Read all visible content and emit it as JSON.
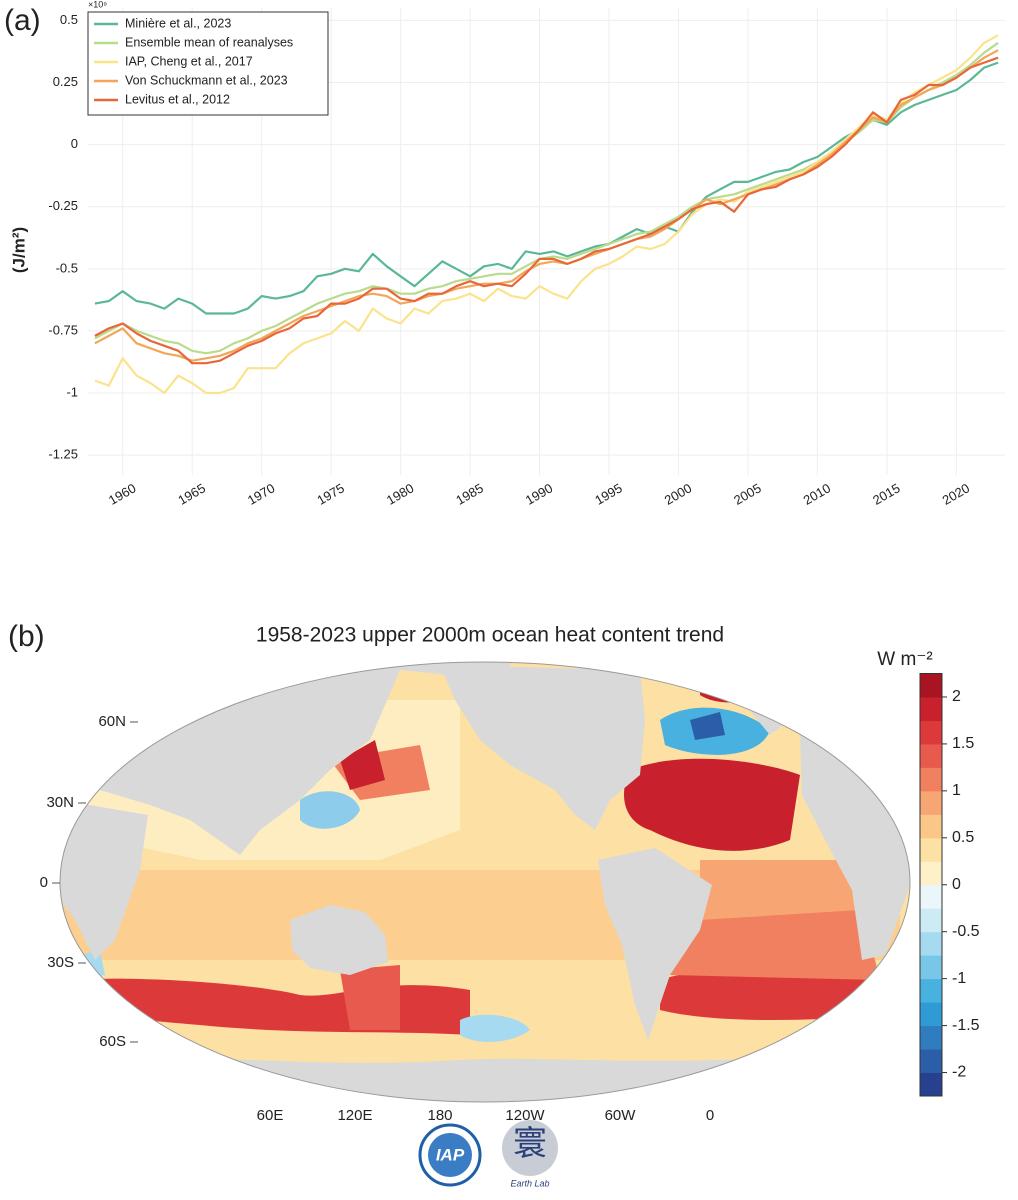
{
  "chart_data": [
    {
      "type": "line",
      "panel": "(a)",
      "ylabel": "(J/m²)",
      "multiplier": "×10⁹",
      "x": [
        1958,
        1959,
        1960,
        1961,
        1962,
        1963,
        1964,
        1965,
        1966,
        1967,
        1968,
        1969,
        1970,
        1971,
        1972,
        1973,
        1974,
        1975,
        1976,
        1977,
        1978,
        1979,
        1980,
        1981,
        1982,
        1983,
        1984,
        1985,
        1986,
        1987,
        1988,
        1989,
        1990,
        1991,
        1992,
        1993,
        1994,
        1995,
        1996,
        1997,
        1998,
        1999,
        2000,
        2001,
        2002,
        2003,
        2004,
        2005,
        2006,
        2007,
        2008,
        2009,
        2010,
        2011,
        2012,
        2013,
        2014,
        2015,
        2016,
        2017,
        2018,
        2019,
        2020,
        2021,
        2022,
        2023
      ],
      "xlim": [
        1957.5,
        2023.5
      ],
      "xticks": [
        1960,
        1965,
        1970,
        1975,
        1980,
        1985,
        1990,
        1995,
        2000,
        2005,
        2010,
        2015,
        2020
      ],
      "ylim": [
        -1.33,
        0.55
      ],
      "yticks": [
        -1.25,
        -1,
        -0.75,
        -0.5,
        -0.25,
        0,
        0.25,
        0.5
      ],
      "grid": true,
      "legend": "upper left",
      "series": [
        {
          "name": "Minière et al., 2023",
          "color": "#5ab896",
          "values": [
            -0.64,
            -0.63,
            -0.59,
            -0.63,
            -0.64,
            -0.66,
            -0.62,
            -0.64,
            -0.68,
            -0.68,
            -0.68,
            -0.66,
            -0.61,
            -0.62,
            -0.61,
            -0.59,
            -0.53,
            -0.52,
            -0.5,
            -0.51,
            -0.44,
            -0.49,
            -0.53,
            -0.57,
            -0.52,
            -0.47,
            -0.5,
            -0.53,
            -0.49,
            -0.48,
            -0.5,
            -0.43,
            -0.44,
            -0.43,
            -0.45,
            -0.43,
            -0.41,
            -0.4,
            -0.37,
            -0.34,
            -0.36,
            -0.33,
            -0.35,
            -0.27,
            -0.21,
            -0.18,
            -0.15,
            -0.15,
            -0.13,
            -0.11,
            -0.1,
            -0.07,
            -0.05,
            -0.01,
            0.03,
            0.06,
            0.1,
            0.08,
            0.13,
            0.16,
            0.18,
            0.2,
            0.22,
            0.26,
            0.31,
            0.33
          ]
        },
        {
          "name": "Ensemble mean of reanalyses",
          "color": "#b8dc8c",
          "values": [
            -0.78,
            -0.75,
            -0.72,
            -0.75,
            -0.77,
            -0.79,
            -0.8,
            -0.83,
            -0.84,
            -0.83,
            -0.8,
            -0.78,
            -0.75,
            -0.73,
            -0.7,
            -0.67,
            -0.64,
            -0.62,
            -0.6,
            -0.59,
            -0.57,
            -0.58,
            -0.6,
            -0.6,
            -0.58,
            -0.57,
            -0.55,
            -0.54,
            -0.53,
            -0.52,
            -0.52,
            -0.49,
            -0.46,
            -0.45,
            -0.46,
            -0.44,
            -0.42,
            -0.4,
            -0.38,
            -0.36,
            -0.35,
            -0.32,
            -0.29,
            -0.25,
            -0.22,
            -0.21,
            -0.2,
            -0.18,
            -0.16,
            -0.14,
            -0.12,
            -0.1,
            -0.07,
            -0.03,
            0.01,
            0.05,
            0.1,
            0.09,
            0.15,
            0.19,
            0.22,
            0.25,
            0.28,
            0.32,
            0.37,
            0.41
          ]
        },
        {
          "name": "IAP, Cheng et al., 2017",
          "color": "#fbe38c",
          "values": [
            -0.95,
            -0.97,
            -0.86,
            -0.93,
            -0.96,
            -1.0,
            -0.93,
            -0.96,
            -1.0,
            -1.0,
            -0.98,
            -0.9,
            -0.9,
            -0.9,
            -0.84,
            -0.8,
            -0.78,
            -0.76,
            -0.71,
            -0.75,
            -0.66,
            -0.7,
            -0.72,
            -0.66,
            -0.68,
            -0.63,
            -0.62,
            -0.6,
            -0.63,
            -0.58,
            -0.61,
            -0.62,
            -0.57,
            -0.6,
            -0.62,
            -0.55,
            -0.5,
            -0.48,
            -0.45,
            -0.41,
            -0.42,
            -0.4,
            -0.35,
            -0.28,
            -0.24,
            -0.22,
            -0.23,
            -0.19,
            -0.17,
            -0.15,
            -0.13,
            -0.11,
            -0.07,
            -0.03,
            0.02,
            0.07,
            0.12,
            0.1,
            0.17,
            0.21,
            0.24,
            0.27,
            0.3,
            0.35,
            0.41,
            0.44
          ]
        },
        {
          "name": "Von Schuckmann et al., 2023",
          "color": "#f2a65a",
          "values": [
            -0.8,
            -0.77,
            -0.74,
            -0.8,
            -0.82,
            -0.84,
            -0.85,
            -0.87,
            -0.86,
            -0.85,
            -0.83,
            -0.8,
            -0.78,
            -0.75,
            -0.72,
            -0.69,
            -0.67,
            -0.65,
            -0.63,
            -0.61,
            -0.6,
            -0.61,
            -0.64,
            -0.63,
            -0.61,
            -0.6,
            -0.58,
            -0.57,
            -0.56,
            -0.56,
            -0.55,
            -0.51,
            -0.48,
            -0.47,
            -0.48,
            -0.46,
            -0.44,
            -0.42,
            -0.4,
            -0.38,
            -0.37,
            -0.34,
            -0.3,
            -0.26,
            -0.22,
            -0.24,
            -0.22,
            -0.2,
            -0.18,
            -0.16,
            -0.14,
            -0.12,
            -0.08,
            -0.04,
            0.01,
            0.06,
            0.11,
            0.09,
            0.16,
            0.19,
            0.22,
            0.24,
            0.27,
            0.31,
            0.35,
            0.38
          ]
        },
        {
          "name": "Levitus et al., 2012",
          "color": "#e8673a",
          "values": [
            -0.77,
            -0.74,
            -0.72,
            -0.76,
            -0.79,
            -0.81,
            -0.83,
            -0.88,
            -0.88,
            -0.87,
            -0.84,
            -0.81,
            -0.79,
            -0.76,
            -0.74,
            -0.7,
            -0.69,
            -0.64,
            -0.64,
            -0.62,
            -0.58,
            -0.58,
            -0.62,
            -0.63,
            -0.6,
            -0.6,
            -0.57,
            -0.55,
            -0.57,
            -0.56,
            -0.57,
            -0.52,
            -0.46,
            -0.46,
            -0.48,
            -0.46,
            -0.43,
            -0.42,
            -0.4,
            -0.38,
            -0.36,
            -0.33,
            -0.3,
            -0.26,
            -0.24,
            -0.23,
            -0.27,
            -0.2,
            -0.18,
            -0.17,
            -0.14,
            -0.12,
            -0.09,
            -0.05,
            0.0,
            0.06,
            0.13,
            0.09,
            0.18,
            0.2,
            0.24,
            0.24,
            0.27,
            0.31,
            0.33,
            0.35
          ]
        }
      ]
    },
    {
      "type": "map",
      "panel": "(b)",
      "title": "1958-2023 upper 2000m ocean heat content trend",
      "lat_labels": [
        "60N",
        "30N",
        "0",
        "30S",
        "60S"
      ],
      "lon_labels": [
        "60E",
        "120E",
        "180",
        "120W",
        "60W",
        "0"
      ],
      "colorbar": {
        "label": "W m⁻²",
        "lim": [
          -2.25,
          2.25
        ],
        "ticks": [
          -2,
          -1.5,
          -1,
          -0.5,
          0,
          0.5,
          1,
          1.5,
          2
        ],
        "colors": [
          "#27408f",
          "#2a5ea8",
          "#2f7dbf",
          "#2f9ad4",
          "#48b1df",
          "#78c6e8",
          "#a6daf0",
          "#cdebf5",
          "#eaf6f9",
          "#fef0c8",
          "#fde0a3",
          "#fbc788",
          "#f7a572",
          "#f08060",
          "#e85a4e",
          "#dc3a3a",
          "#c8202c",
          "#a81422"
        ]
      }
    }
  ],
  "logos": [
    "IAP",
    "寰",
    "Earth Lab"
  ]
}
